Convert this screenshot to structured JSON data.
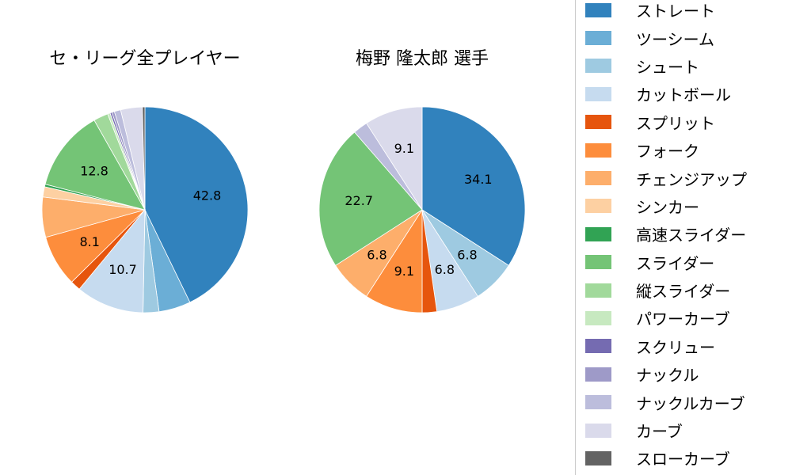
{
  "chart_data": [
    {
      "type": "pie",
      "title": "セ・リーグ全プレイヤー",
      "start_angle_deg": 0,
      "direction": "clockwise",
      "slices": [
        {
          "label": "ストレート",
          "value": 42.8,
          "pct_label": "42.8"
        },
        {
          "label": "ツーシーム",
          "value": 5.0,
          "pct_label": ""
        },
        {
          "label": "シュート",
          "value": 2.5,
          "pct_label": ""
        },
        {
          "label": "カットボール",
          "value": 10.7,
          "pct_label": "10.7"
        },
        {
          "label": "スプリット",
          "value": 1.6,
          "pct_label": ""
        },
        {
          "label": "フォーク",
          "value": 8.1,
          "pct_label": "8.1"
        },
        {
          "label": "チェンジアップ",
          "value": 6.3,
          "pct_label": ""
        },
        {
          "label": "シンカー",
          "value": 1.6,
          "pct_label": ""
        },
        {
          "label": "高速スライダー",
          "value": 0.4,
          "pct_label": ""
        },
        {
          "label": "スライダー",
          "value": 12.8,
          "pct_label": "12.8"
        },
        {
          "label": "縦スライダー",
          "value": 2.3,
          "pct_label": ""
        },
        {
          "label": "パワーカーブ",
          "value": 0.4,
          "pct_label": ""
        },
        {
          "label": "スクリュー",
          "value": 0.3,
          "pct_label": ""
        },
        {
          "label": "ナックル",
          "value": 0.4,
          "pct_label": ""
        },
        {
          "label": "ナックルカーブ",
          "value": 1.0,
          "pct_label": ""
        },
        {
          "label": "カーブ",
          "value": 3.4,
          "pct_label": ""
        },
        {
          "label": "スローカーブ",
          "value": 0.4,
          "pct_label": ""
        }
      ]
    },
    {
      "type": "pie",
      "title": "梅野 隆太郎  選手",
      "start_angle_deg": 0,
      "direction": "clockwise",
      "slices": [
        {
          "label": "ストレート",
          "value": 34.1,
          "pct_label": "34.1"
        },
        {
          "label": "ツーシーム",
          "value": 0,
          "pct_label": ""
        },
        {
          "label": "シュート",
          "value": 6.8,
          "pct_label": "6.8"
        },
        {
          "label": "カットボール",
          "value": 6.8,
          "pct_label": "6.8"
        },
        {
          "label": "スプリット",
          "value": 2.3,
          "pct_label": ""
        },
        {
          "label": "フォーク",
          "value": 9.1,
          "pct_label": "9.1"
        },
        {
          "label": "チェンジアップ",
          "value": 6.8,
          "pct_label": "6.8"
        },
        {
          "label": "シンカー",
          "value": 0,
          "pct_label": ""
        },
        {
          "label": "高速スライダー",
          "value": 0,
          "pct_label": ""
        },
        {
          "label": "スライダー",
          "value": 22.7,
          "pct_label": "22.7"
        },
        {
          "label": "縦スライダー",
          "value": 0,
          "pct_label": ""
        },
        {
          "label": "パワーカーブ",
          "value": 0,
          "pct_label": ""
        },
        {
          "label": "スクリュー",
          "value": 0,
          "pct_label": ""
        },
        {
          "label": "ナックル",
          "value": 0,
          "pct_label": ""
        },
        {
          "label": "ナックルカーブ",
          "value": 2.3,
          "pct_label": ""
        },
        {
          "label": "カーブ",
          "value": 9.1,
          "pct_label": "9.1"
        },
        {
          "label": "スローカーブ",
          "value": 0,
          "pct_label": ""
        }
      ]
    }
  ],
  "legend": {
    "position": "right",
    "items": [
      {
        "label": "ストレート",
        "color": "#3182bd"
      },
      {
        "label": "ツーシーム",
        "color": "#6baed6"
      },
      {
        "label": "シュート",
        "color": "#9ecae1"
      },
      {
        "label": "カットボール",
        "color": "#c6dbef"
      },
      {
        "label": "スプリット",
        "color": "#e6550d"
      },
      {
        "label": "フォーク",
        "color": "#fd8d3c"
      },
      {
        "label": "チェンジアップ",
        "color": "#fdae6b"
      },
      {
        "label": "シンカー",
        "color": "#fdd0a2"
      },
      {
        "label": "高速スライダー",
        "color": "#31a354"
      },
      {
        "label": "スライダー",
        "color": "#74c476"
      },
      {
        "label": "縦スライダー",
        "color": "#a1d99b"
      },
      {
        "label": "パワーカーブ",
        "color": "#c7e9c0"
      },
      {
        "label": "スクリュー",
        "color": "#756bb1"
      },
      {
        "label": "ナックル",
        "color": "#9e9ac8"
      },
      {
        "label": "ナックルカーブ",
        "color": "#bcbddc"
      },
      {
        "label": "カーブ",
        "color": "#dadaeb"
      },
      {
        "label": "スローカーブ",
        "color": "#636363"
      }
    ]
  }
}
